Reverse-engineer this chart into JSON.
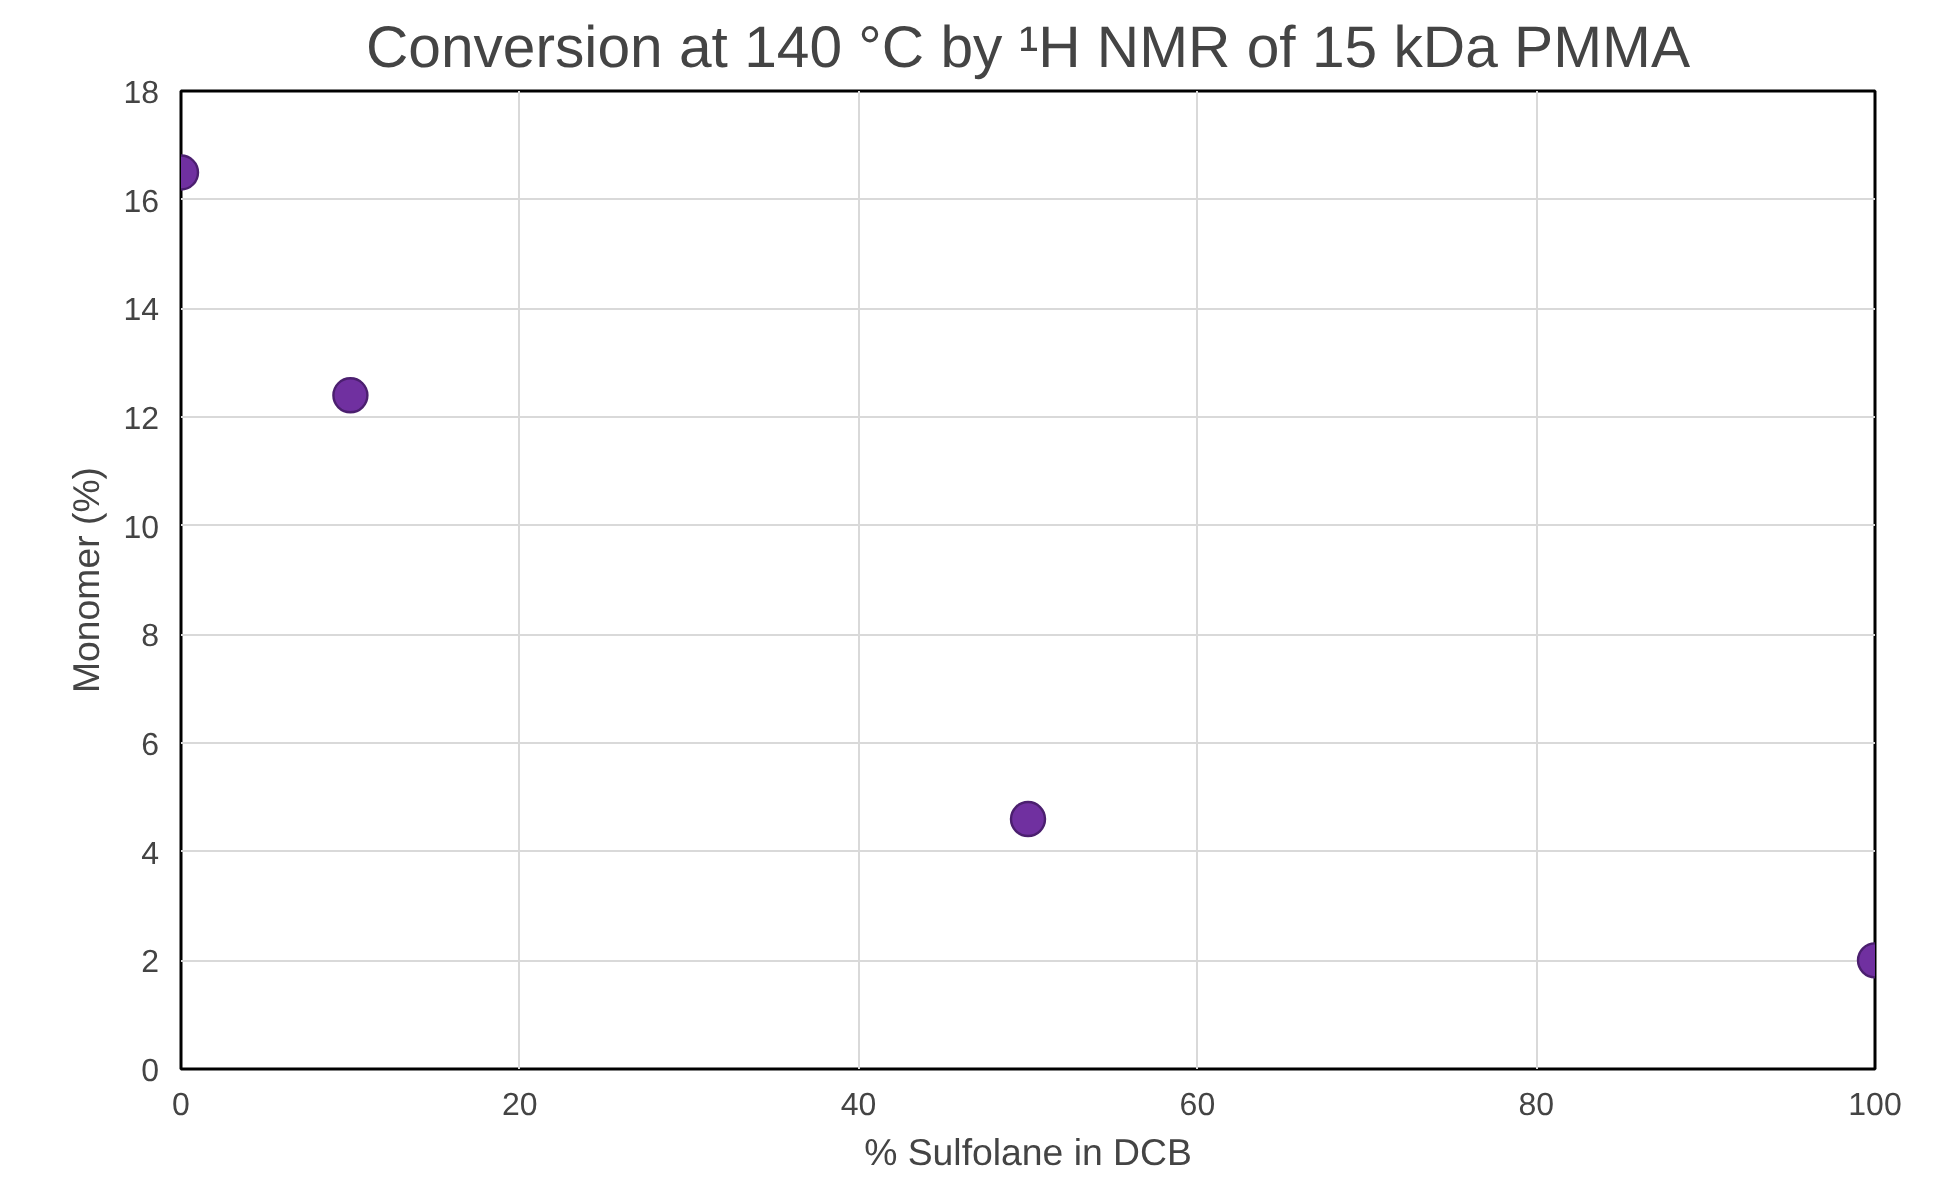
{
  "chart_data": {
    "type": "scatter",
    "title": "Conversion at 140 °C by ¹H NMR of 15 kDa PMMA",
    "xlabel": "% Sulfolane in DCB",
    "ylabel": "Monomer (%)",
    "x": [
      0,
      10,
      50,
      100
    ],
    "series": [
      {
        "color": "#7030a0",
        "values": [
          16.5,
          12.4,
          4.6,
          2.0
        ]
      }
    ],
    "xlim": [
      0,
      100
    ],
    "xticks": [
      0,
      20,
      40,
      60,
      80,
      100
    ],
    "ylim": [
      0,
      18
    ],
    "yticks": [
      0,
      2,
      4,
      6,
      8,
      10,
      12,
      14,
      16,
      18
    ],
    "grid": true,
    "marker": "circle"
  }
}
